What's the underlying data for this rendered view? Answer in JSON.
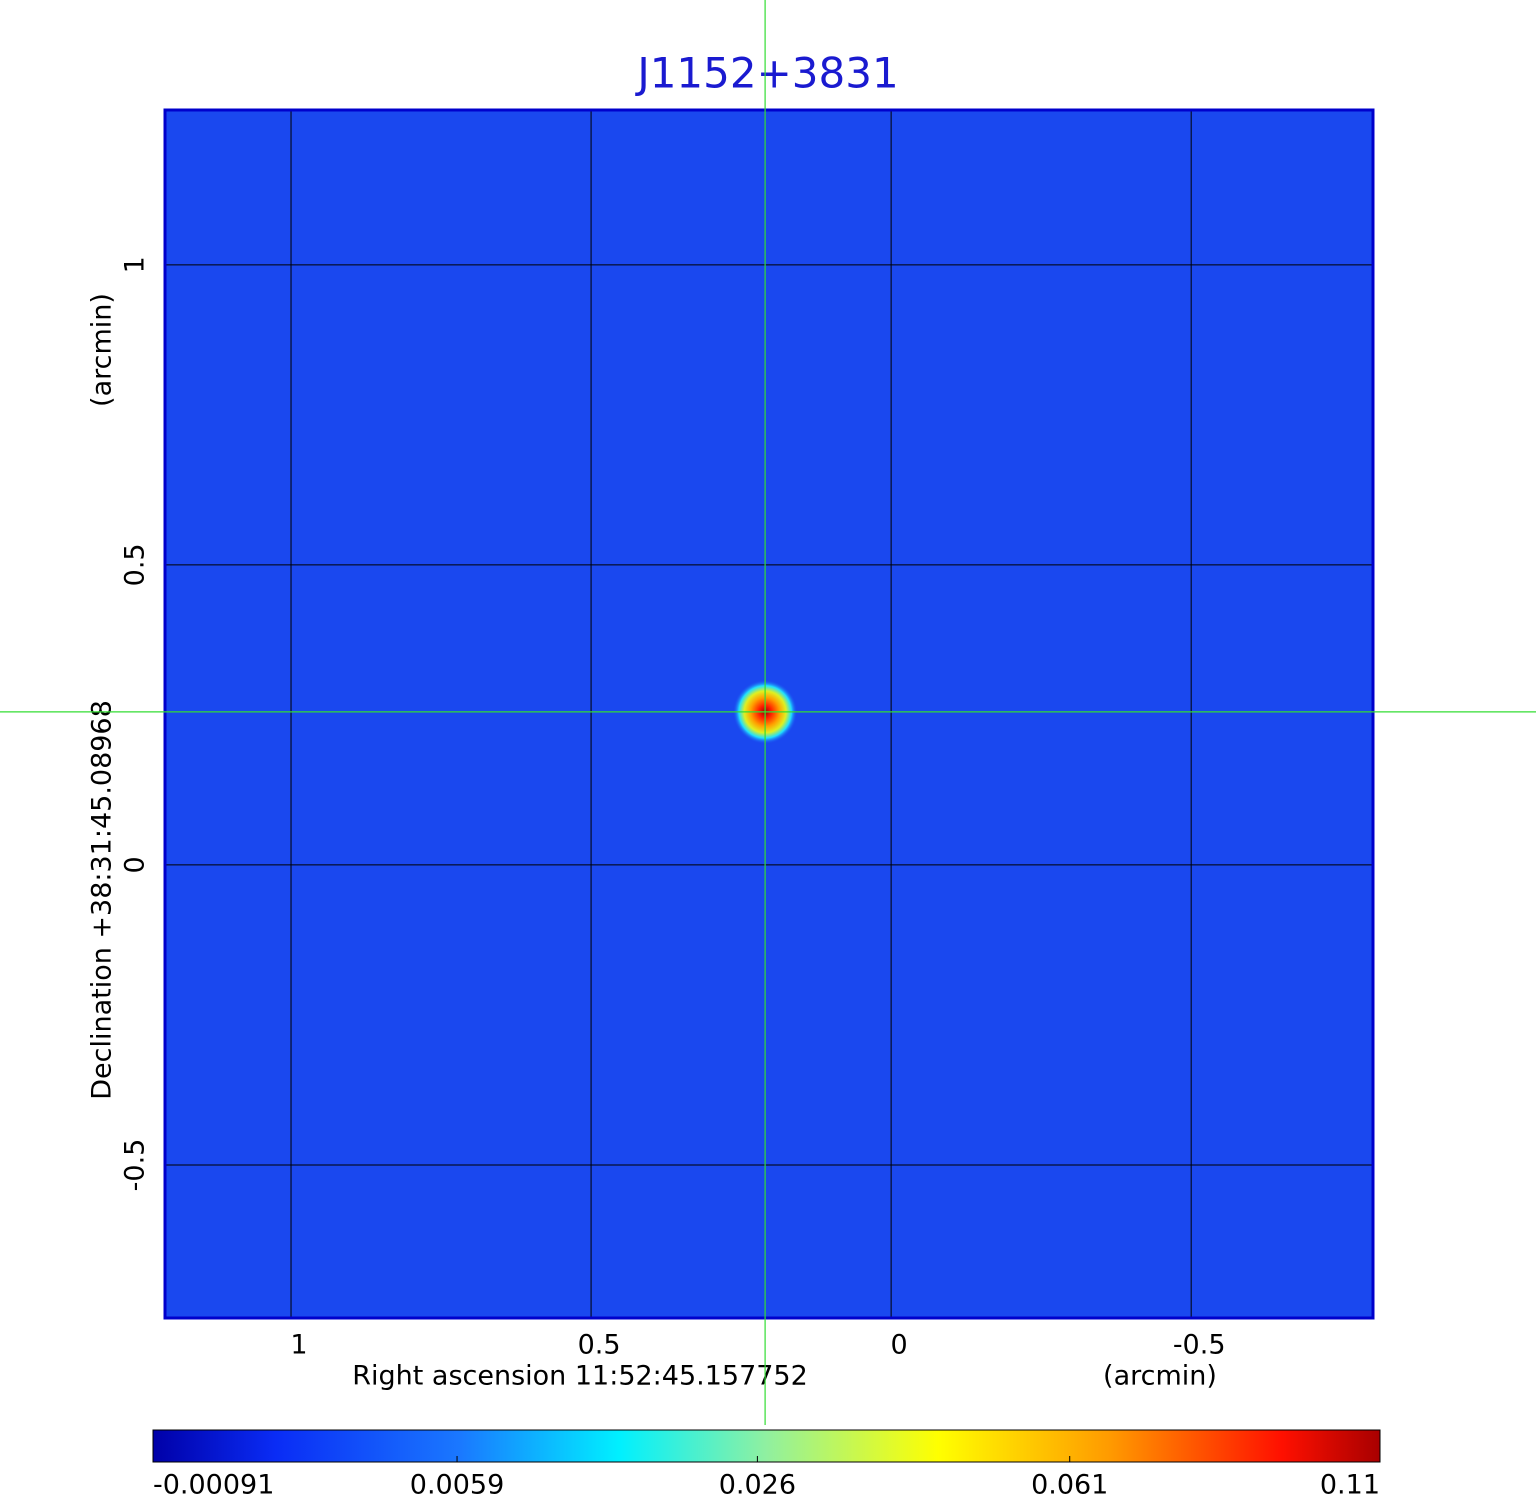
{
  "chart_data": {
    "type": "sky-image",
    "title": "J1152+3831",
    "xlabel": "Right ascension  11:52:45.157752",
    "xunit": "(arcmin)",
    "ylabel": "Declination  +38:31:45.08968",
    "yunit": "(arcmin)",
    "xlim": [
      1.21,
      -0.803
    ],
    "ylim": [
      -0.755,
      1.258
    ],
    "xticks": [
      1.0,
      0.5,
      0.0,
      -0.5
    ],
    "yticks": [
      1.0,
      0.5,
      0.0,
      -0.5
    ],
    "grid": true,
    "source": {
      "x": 0.21,
      "y": 0.255,
      "peak": 0.11
    },
    "colorbar_scale": "sqrt",
    "colorbar_lim": [
      -0.00091,
      0.11
    ],
    "colorbar_ticks": [
      -0.00091,
      0.0059,
      0.026,
      0.061,
      0.11
    ]
  }
}
